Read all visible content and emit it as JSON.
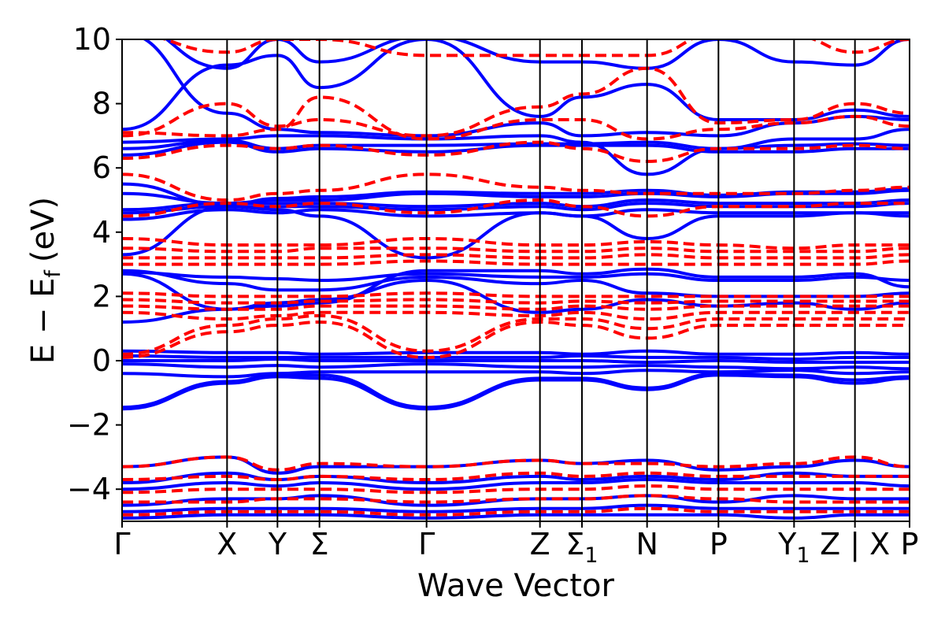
{
  "chart_data": {
    "type": "line",
    "title": "",
    "xlabel": "Wave Vector",
    "ylabel_parts": {
      "main": "E − E",
      "sub": "f",
      "unit": "(eV)"
    },
    "ylim": [
      -5,
      10
    ],
    "yticks": [
      {
        "value": 10,
        "label": "10"
      },
      {
        "value": 8,
        "label": "8"
      },
      {
        "value": 6,
        "label": "6"
      },
      {
        "value": 4,
        "label": "4"
      },
      {
        "value": 2,
        "label": "2"
      },
      {
        "value": 0,
        "label": "0"
      },
      {
        "value": -2,
        "label": "−2"
      },
      {
        "value": -4,
        "label": "−4"
      }
    ],
    "kpoints": [
      {
        "label": "Γ",
        "sub": "",
        "x": 0
      },
      {
        "label": "X",
        "sub": "",
        "x": 1
      },
      {
        "label": "Y",
        "sub": "",
        "x": 1.48
      },
      {
        "label": "Σ",
        "sub": "",
        "x": 1.88
      },
      {
        "label": "Γ",
        "sub": "",
        "x": 2.9
      },
      {
        "label": "Z",
        "sub": "",
        "x": 3.98
      },
      {
        "label": "Σ",
        "sub": "1",
        "x": 4.38
      },
      {
        "label": "N",
        "sub": "",
        "x": 5.0
      },
      {
        "label": "P",
        "sub": "",
        "x": 5.68
      },
      {
        "label": "Y",
        "sub": "1",
        "x": 6.4
      },
      {
        "label": "Z | X",
        "sub": "",
        "x": 6.98
      },
      {
        "label": "P",
        "sub": "",
        "x": 7.5
      }
    ],
    "xlim": [
      0,
      7.5
    ],
    "series": [
      {
        "style": "solid",
        "color": "#0000ff",
        "bands": [
          [
            -1.5,
            -0.7,
            -0.5,
            -0.55,
            -1.5,
            -0.6,
            -0.6,
            -0.9,
            -0.45,
            -0.5,
            -0.7,
            -0.55
          ],
          [
            -1.45,
            -0.65,
            -0.45,
            -0.45,
            -1.45,
            -0.55,
            -0.55,
            -0.85,
            -0.4,
            -0.45,
            -0.6,
            -0.5
          ],
          [
            -0.4,
            -0.5,
            -0.4,
            -0.35,
            -0.35,
            -0.35,
            -0.4,
            -0.3,
            -0.35,
            -0.3,
            -0.4,
            -0.35
          ],
          [
            -0.1,
            -0.2,
            -0.15,
            -0.2,
            -0.1,
            -0.2,
            -0.2,
            -0.15,
            -0.2,
            -0.25,
            -0.2,
            -0.25
          ],
          [
            0.0,
            0.0,
            0.05,
            0.0,
            0.0,
            0.0,
            0.0,
            -0.05,
            0.0,
            -0.05,
            -0.05,
            -0.05
          ],
          [
            0.15,
            0.1,
            0.1,
            0.1,
            0.1,
            0.1,
            0.15,
            0.1,
            0.1,
            0.05,
            0.1,
            0.1
          ],
          [
            0.3,
            0.25,
            0.25,
            0.2,
            0.25,
            0.25,
            0.2,
            0.3,
            0.2,
            0.2,
            0.25,
            0.2
          ],
          [
            1.2,
            1.6,
            1.8,
            1.9,
            2.5,
            1.5,
            1.6,
            1.9,
            1.7,
            1.8,
            1.6,
            1.8
          ],
          [
            2.8,
            2.4,
            2.2,
            2.2,
            2.6,
            2.4,
            2.5,
            2.1,
            2.0,
            2.0,
            2.0,
            2.1
          ],
          [
            2.75,
            2.6,
            2.55,
            2.5,
            2.7,
            2.6,
            2.6,
            2.7,
            2.5,
            2.5,
            2.6,
            2.5
          ],
          [
            2.7,
            1.6,
            1.7,
            1.8,
            2.8,
            2.8,
            2.7,
            2.85,
            2.6,
            2.6,
            2.7,
            2.3
          ],
          [
            4.4,
            4.7,
            4.6,
            4.7,
            4.5,
            4.6,
            4.5,
            4.7,
            4.6,
            4.6,
            4.6,
            4.6
          ],
          [
            4.6,
            4.8,
            4.8,
            4.8,
            4.7,
            4.8,
            4.7,
            4.9,
            4.8,
            4.8,
            4.8,
            4.9
          ],
          [
            4.7,
            4.9,
            4.9,
            4.9,
            4.8,
            4.9,
            4.8,
            5.0,
            4.9,
            4.9,
            4.9,
            5.0
          ],
          [
            5.2,
            4.9,
            5.0,
            5.0,
            5.2,
            5.1,
            5.1,
            5.2,
            5.1,
            5.2,
            5.2,
            5.3
          ],
          [
            5.5,
            4.85,
            5.05,
            5.1,
            5.25,
            5.2,
            5.2,
            5.3,
            5.15,
            5.25,
            5.25,
            5.35
          ],
          [
            3.3,
            4.8,
            4.7,
            4.5,
            3.2,
            4.6,
            4.5,
            3.8,
            4.5,
            4.5,
            4.6,
            4.5
          ],
          [
            6.4,
            6.8,
            6.5,
            6.6,
            6.5,
            6.7,
            6.7,
            6.7,
            6.5,
            6.5,
            6.6,
            6.6
          ],
          [
            6.6,
            6.85,
            6.6,
            6.7,
            6.7,
            6.75,
            6.75,
            6.8,
            6.6,
            6.7,
            6.75,
            6.7
          ],
          [
            6.8,
            6.9,
            7.0,
            7.0,
            6.9,
            7.0,
            6.8,
            5.8,
            6.6,
            6.9,
            6.9,
            7.2
          ],
          [
            10.2,
            7.7,
            7.2,
            7.1,
            7.0,
            7.4,
            7.0,
            7.1,
            7.0,
            7.4,
            7.6,
            7.5
          ],
          [
            10.5,
            9.1,
            10.0,
            9.3,
            10.1,
            9.3,
            9.3,
            9.1,
            10.0,
            9.3,
            9.2,
            10.0
          ],
          [
            7.2,
            9.2,
            9.5,
            8.5,
            10.0,
            7.6,
            8.2,
            8.6,
            7.5,
            7.5,
            7.8,
            7.6
          ],
          [
            -3.3,
            -3.0,
            -3.5,
            -3.3,
            -3.3,
            -3.1,
            -3.2,
            -3.1,
            -3.4,
            -3.3,
            -3.1,
            -3.3
          ],
          [
            -3.8,
            -3.5,
            -3.7,
            -3.6,
            -3.8,
            -3.6,
            -3.7,
            -3.6,
            -3.7,
            -3.5,
            -3.6,
            -3.6
          ],
          [
            -4.0,
            -3.8,
            -3.9,
            -3.8,
            -4.0,
            -3.8,
            -3.8,
            -3.7,
            -3.8,
            -3.8,
            -3.8,
            -3.9
          ],
          [
            -4.5,
            -4.3,
            -4.3,
            -4.2,
            -4.5,
            -4.3,
            -4.3,
            -4.2,
            -4.4,
            -4.2,
            -4.3,
            -4.3
          ],
          [
            -4.7,
            -4.6,
            -4.6,
            -4.6,
            -4.7,
            -4.6,
            -4.6,
            -4.5,
            -4.6,
            -4.6,
            -4.6,
            -4.6
          ],
          [
            -4.9,
            -4.8,
            -4.8,
            -4.8,
            -4.9,
            -4.8,
            -4.8,
            -4.8,
            -4.8,
            -4.9,
            -4.8,
            -4.8
          ]
        ]
      },
      {
        "style": "dashed",
        "color": "#ff0000",
        "bands": [
          [
            0.1,
            0.9,
            1.1,
            1.2,
            0.1,
            1.2,
            1.1,
            0.7,
            1.1,
            1.1,
            1.1,
            1.1
          ],
          [
            0.2,
            1.1,
            1.3,
            1.4,
            0.3,
            1.3,
            1.3,
            1.0,
            1.3,
            1.3,
            1.3,
            1.3
          ],
          [
            1.5,
            1.3,
            1.4,
            1.5,
            1.5,
            1.4,
            1.5,
            1.3,
            1.5,
            1.5,
            1.5,
            1.5
          ],
          [
            1.7,
            1.6,
            1.6,
            1.7,
            1.7,
            1.6,
            1.7,
            1.6,
            1.7,
            1.7,
            1.7,
            1.7
          ],
          [
            1.9,
            1.8,
            1.8,
            1.85,
            1.9,
            1.8,
            1.85,
            1.8,
            1.85,
            1.85,
            1.85,
            1.85
          ],
          [
            2.1,
            2.0,
            2.0,
            2.0,
            2.1,
            2.0,
            2.0,
            2.0,
            2.0,
            2.0,
            2.0,
            2.0
          ],
          [
            3.0,
            3.0,
            3.0,
            3.0,
            3.1,
            3.0,
            3.0,
            3.0,
            3.0,
            3.0,
            3.0,
            3.1
          ],
          [
            3.2,
            3.2,
            3.2,
            3.2,
            3.3,
            3.2,
            3.2,
            3.3,
            3.2,
            3.2,
            3.2,
            3.3
          ],
          [
            3.5,
            3.4,
            3.4,
            3.5,
            3.5,
            3.4,
            3.4,
            3.5,
            3.4,
            3.4,
            3.4,
            3.5
          ],
          [
            3.8,
            3.6,
            3.6,
            3.6,
            3.8,
            3.6,
            3.6,
            3.7,
            3.6,
            3.5,
            3.6,
            3.6
          ],
          [
            4.5,
            4.9,
            4.8,
            4.9,
            4.6,
            5.0,
            4.8,
            4.5,
            4.8,
            4.8,
            4.9,
            4.9
          ],
          [
            5.8,
            5.0,
            5.2,
            5.3,
            5.8,
            5.4,
            5.3,
            5.2,
            5.2,
            5.2,
            5.3,
            5.4
          ],
          [
            6.3,
            6.7,
            6.6,
            6.7,
            6.4,
            6.8,
            6.6,
            6.2,
            6.6,
            6.6,
            6.7,
            6.6
          ],
          [
            7.0,
            8.0,
            7.3,
            7.5,
            7.0,
            7.9,
            8.3,
            9.1,
            7.4,
            7.5,
            8.0,
            7.7
          ],
          [
            7.1,
            7.0,
            7.2,
            8.2,
            6.9,
            7.5,
            7.5,
            6.9,
            7.2,
            7.4,
            7.6,
            7.3
          ],
          [
            10.2,
            9.6,
            10.0,
            10.0,
            9.5,
            9.5,
            9.5,
            9.5,
            10.2,
            10.1,
            9.6,
            10.0
          ],
          [
            -3.3,
            -3.0,
            -3.4,
            -3.2,
            -3.3,
            -3.1,
            -3.2,
            -3.2,
            -3.3,
            -3.2,
            -3.0,
            -3.3
          ],
          [
            -3.7,
            -3.6,
            -3.7,
            -3.6,
            -3.7,
            -3.5,
            -3.6,
            -3.5,
            -3.6,
            -3.6,
            -3.6,
            -3.6
          ],
          [
            -4.1,
            -4.0,
            -4.0,
            -4.0,
            -4.1,
            -4.0,
            -4.0,
            -3.9,
            -4.0,
            -4.0,
            -4.0,
            -4.0
          ],
          [
            -4.4,
            -4.4,
            -4.3,
            -4.3,
            -4.4,
            -4.3,
            -4.3,
            -4.2,
            -4.3,
            -4.4,
            -4.4,
            -4.4
          ],
          [
            -4.8,
            -4.7,
            -4.7,
            -4.7,
            -4.8,
            -4.7,
            -4.7,
            -4.6,
            -4.7,
            -4.7,
            -4.7,
            -4.7
          ]
        ]
      }
    ]
  }
}
